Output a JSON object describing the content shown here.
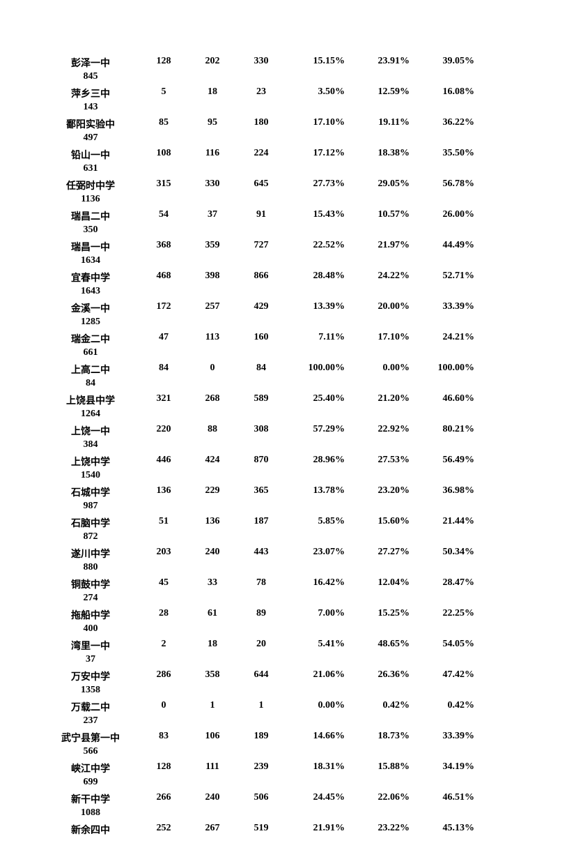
{
  "table": {
    "columns": {
      "name_width": 140,
      "num_width": 70,
      "pct_width": 85
    },
    "font": {
      "family": "SimSun",
      "size_pt": 14,
      "weight": "bold",
      "color": "#000000"
    },
    "background_color": "#ffffff",
    "rows": [
      {
        "name": "彭泽一中",
        "c1": "128",
        "c2": "202",
        "c3": "330",
        "p1": "15.15%",
        "p2": "23.91%",
        "p3": "39.05%",
        "sub": "845"
      },
      {
        "name": "萍乡三中",
        "c1": "5",
        "c2": "18",
        "c3": "23",
        "p1": "3.50%",
        "p2": "12.59%",
        "p3": "16.08%",
        "sub": "143"
      },
      {
        "name": "鄱阳实验中",
        "c1": "85",
        "c2": "95",
        "c3": "180",
        "p1": "17.10%",
        "p2": "19.11%",
        "p3": "36.22%",
        "sub": "497"
      },
      {
        "name": "铅山一中",
        "c1": "108",
        "c2": "116",
        "c3": "224",
        "p1": "17.12%",
        "p2": "18.38%",
        "p3": "35.50%",
        "sub": "631"
      },
      {
        "name": "任弼时中学",
        "c1": "315",
        "c2": "330",
        "c3": "645",
        "p1": "27.73%",
        "p2": "29.05%",
        "p3": "56.78%",
        "sub": "1136"
      },
      {
        "name": "瑞昌二中",
        "c1": "54",
        "c2": "37",
        "c3": "91",
        "p1": "15.43%",
        "p2": "10.57%",
        "p3": "26.00%",
        "sub": "350"
      },
      {
        "name": "瑞昌一中",
        "c1": "368",
        "c2": "359",
        "c3": "727",
        "p1": "22.52%",
        "p2": "21.97%",
        "p3": "44.49%",
        "sub": "1634"
      },
      {
        "name": "宜春中学",
        "c1": "468",
        "c2": "398",
        "c3": "866",
        "p1": "28.48%",
        "p2": "24.22%",
        "p3": "52.71%",
        "sub": "1643"
      },
      {
        "name": "金溪一中",
        "c1": "172",
        "c2": "257",
        "c3": "429",
        "p1": "13.39%",
        "p2": "20.00%",
        "p3": "33.39%",
        "sub": "1285"
      },
      {
        "name": "瑞金二中",
        "c1": "47",
        "c2": "113",
        "c3": "160",
        "p1": "7.11%",
        "p2": "17.10%",
        "p3": "24.21%",
        "sub": "661"
      },
      {
        "name": "上高二中",
        "c1": "84",
        "c2": "0",
        "c3": "84",
        "p1": "100.00%",
        "p2": "0.00%",
        "p3": "100.00%",
        "sub": "84"
      },
      {
        "name": "上饶县中学",
        "c1": "321",
        "c2": "268",
        "c3": "589",
        "p1": "25.40%",
        "p2": "21.20%",
        "p3": "46.60%",
        "sub": "1264"
      },
      {
        "name": "上饶一中",
        "c1": "220",
        "c2": "88",
        "c3": "308",
        "p1": "57.29%",
        "p2": "22.92%",
        "p3": "80.21%",
        "sub": "384"
      },
      {
        "name": "上饶中学",
        "c1": "446",
        "c2": "424",
        "c3": "870",
        "p1": "28.96%",
        "p2": "27.53%",
        "p3": "56.49%",
        "sub": "1540"
      },
      {
        "name": "石城中学",
        "c1": "136",
        "c2": "229",
        "c3": "365",
        "p1": "13.78%",
        "p2": "23.20%",
        "p3": "36.98%",
        "sub": "987"
      },
      {
        "name": "石脑中学",
        "c1": "51",
        "c2": "136",
        "c3": "187",
        "p1": "5.85%",
        "p2": "15.60%",
        "p3": "21.44%",
        "sub": "872"
      },
      {
        "name": "遂川中学",
        "c1": "203",
        "c2": "240",
        "c3": "443",
        "p1": "23.07%",
        "p2": "27.27%",
        "p3": "50.34%",
        "sub": "880"
      },
      {
        "name": "铜鼓中学",
        "c1": "45",
        "c2": "33",
        "c3": "78",
        "p1": "16.42%",
        "p2": "12.04%",
        "p3": "28.47%",
        "sub": "274"
      },
      {
        "name": "拖船中学",
        "c1": "28",
        "c2": "61",
        "c3": "89",
        "p1": "7.00%",
        "p2": "15.25%",
        "p3": "22.25%",
        "sub": "400"
      },
      {
        "name": "湾里一中",
        "c1": "2",
        "c2": "18",
        "c3": "20",
        "p1": "5.41%",
        "p2": "48.65%",
        "p3": "54.05%",
        "sub": "37"
      },
      {
        "name": "万安中学",
        "c1": "286",
        "c2": "358",
        "c3": "644",
        "p1": "21.06%",
        "p2": "26.36%",
        "p3": "47.42%",
        "sub": "1358"
      },
      {
        "name": "万载二中",
        "c1": "0",
        "c2": "1",
        "c3": "1",
        "p1": "0.00%",
        "p2": "0.42%",
        "p3": "0.42%",
        "sub": "237"
      },
      {
        "name": "武宁县第一中",
        "c1": "83",
        "c2": "106",
        "c3": "189",
        "p1": "14.66%",
        "p2": "18.73%",
        "p3": "33.39%",
        "sub": "566"
      },
      {
        "name": "峡江中学",
        "c1": "128",
        "c2": "111",
        "c3": "239",
        "p1": "18.31%",
        "p2": "15.88%",
        "p3": "34.19%",
        "sub": "699"
      },
      {
        "name": "新干中学",
        "c1": "266",
        "c2": "240",
        "c3": "506",
        "p1": "24.45%",
        "p2": "22.06%",
        "p3": "46.51%",
        "sub": "1088"
      },
      {
        "name": "新余四中",
        "c1": "252",
        "c2": "267",
        "c3": "519",
        "p1": "21.91%",
        "p2": "23.22%",
        "p3": "45.13%",
        "sub": ""
      }
    ]
  }
}
